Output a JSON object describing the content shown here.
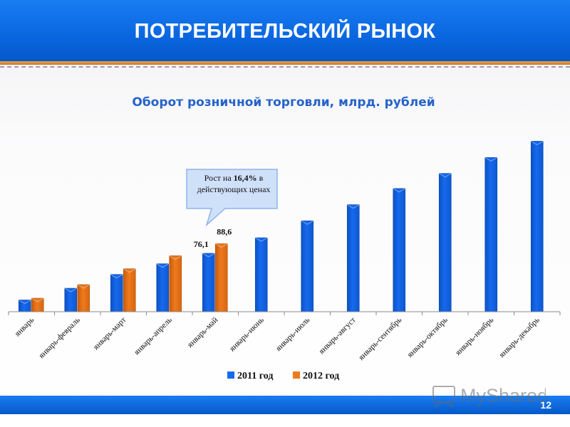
{
  "header": {
    "title": "ПОТРЕБИТЕЛЬСКИЙ РЫНОК"
  },
  "footer": {
    "slide_number": "12",
    "watermark": "MyShared"
  },
  "callout": {
    "prefix": "Рост на ",
    "highlight": "16,4%",
    "suffix": " в действующих ценах"
  },
  "colors": {
    "series_2011": "#1669ee",
    "series_2012": "#ee7a1e",
    "accent": "#0a66e0",
    "title": "#2563c9"
  },
  "chart_data": {
    "type": "bar",
    "title": "Оборот розничной торговли, млрд. рублей",
    "categories": [
      "январь",
      "январь-февраль",
      "январь-март",
      "январь-апрель",
      "январь-май",
      "январь-июнь",
      "январь-июль",
      "январь-август",
      "январь-сентябрь",
      "январь-октябрь",
      "январь-ноябрь",
      "январь-декабрь"
    ],
    "series": [
      {
        "name": "2011 год",
        "color": "#1669ee",
        "values": [
          15.3,
          30.6,
          48.6,
          62.5,
          76.1,
          96.4,
          118.5,
          139.5,
          160.6,
          180.2,
          201.0,
          222.2
        ]
      },
      {
        "name": "2012 год",
        "color": "#ee7a1e",
        "values": [
          17.6,
          35.3,
          56.0,
          72.9,
          88.6,
          null,
          null,
          null,
          null,
          null,
          null,
          null
        ]
      }
    ],
    "data_labels": [
      {
        "series": 0,
        "index": 4,
        "text": "76,1"
      },
      {
        "series": 1,
        "index": 4,
        "text": "88,6"
      }
    ],
    "ylim": [
      0,
      230
    ],
    "legend": "bottom",
    "grid": false
  }
}
